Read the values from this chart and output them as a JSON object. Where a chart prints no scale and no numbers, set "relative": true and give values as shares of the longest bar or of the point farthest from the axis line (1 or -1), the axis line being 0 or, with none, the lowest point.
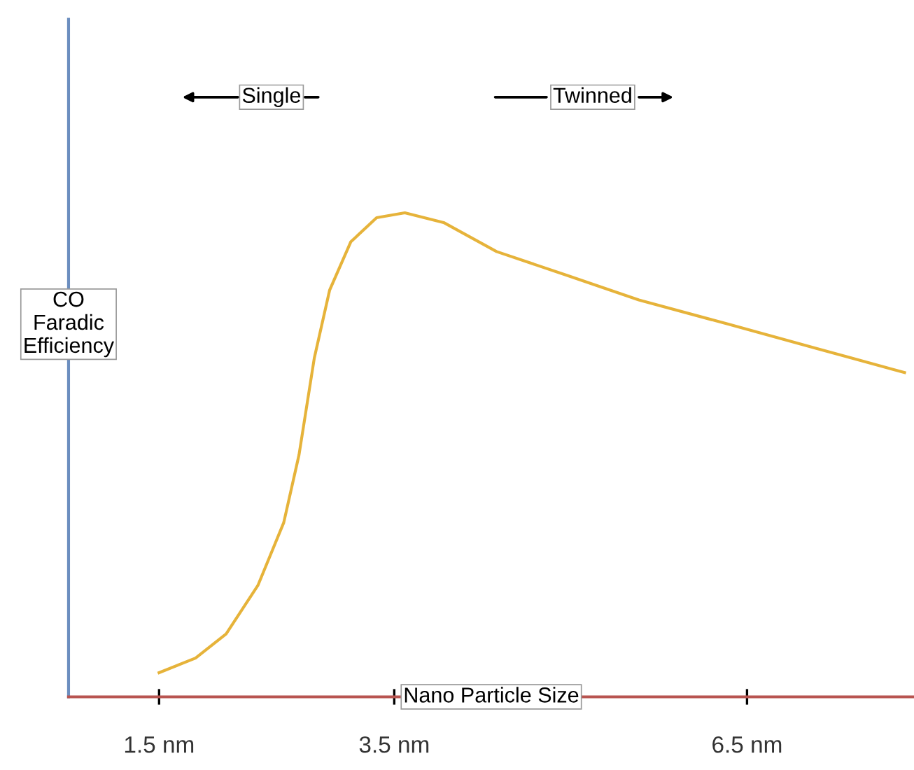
{
  "chart_data": {
    "type": "line",
    "relative": true,
    "xlabel": "Nano Particle Size",
    "ylabel": "CO\nFaradic\nEfficiency",
    "x": [
      1.5,
      1.81,
      2.07,
      2.34,
      2.56,
      2.69,
      2.82,
      2.95,
      3.13,
      3.35,
      3.59,
      3.92,
      4.37,
      4.98,
      5.58,
      6.34,
      7.09,
      7.84
    ],
    "series": [
      {
        "color": "#e6b33a",
        "values": [
          0.05,
          0.08,
          0.13,
          0.23,
          0.36,
          0.5,
          0.7,
          0.84,
          0.94,
          0.99,
          1.0,
          0.98,
          0.92,
          0.87,
          0.82,
          0.77,
          0.72,
          0.67
        ]
      }
    ],
    "xlim": [
      0.73,
      7.92
    ],
    "xticks": [
      {
        "value": 1.5,
        "label": "1.5 nm"
      },
      {
        "value": 3.5,
        "label": "3.5 nm"
      },
      {
        "value": 6.5,
        "label": "6.5 nm"
      }
    ],
    "annotations": [
      "Single",
      "Twinned"
    ],
    "grid": false,
    "legend": false,
    "marker": "none",
    "line_style": "solid"
  }
}
